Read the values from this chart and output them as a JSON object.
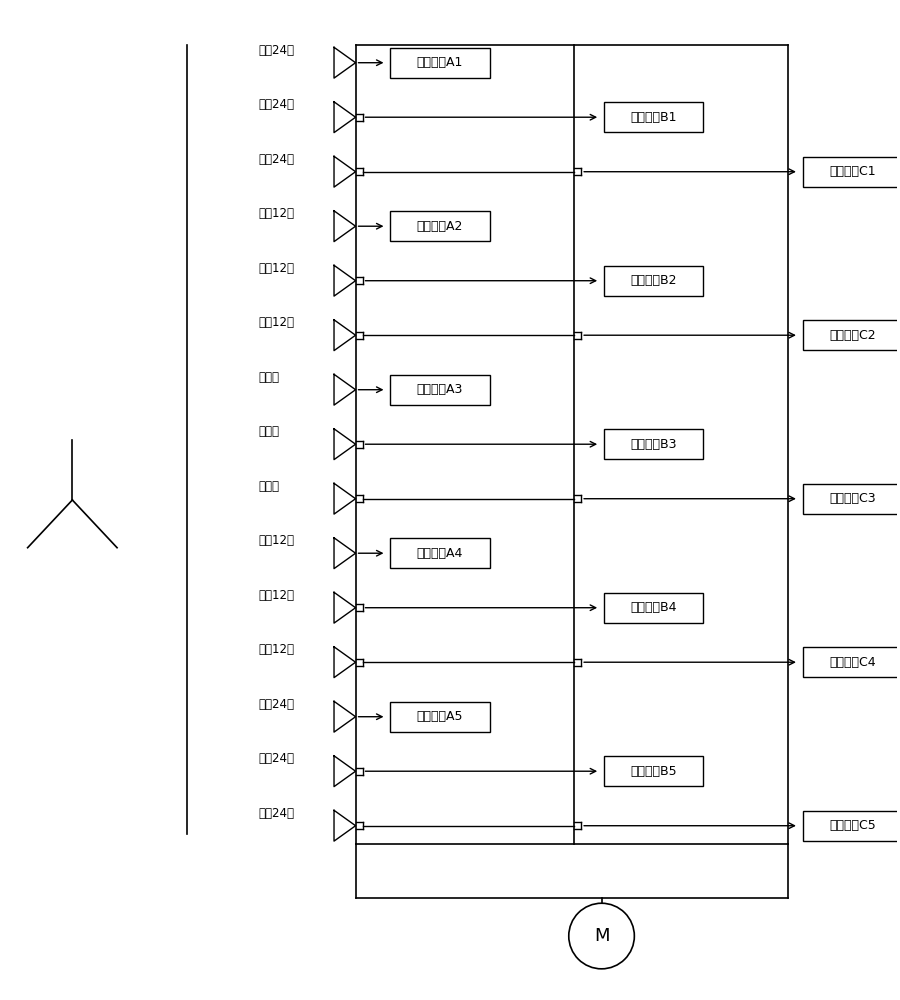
{
  "fig_width": 9.0,
  "fig_height": 10.0,
  "bg_color": "#ffffff",
  "phases": [
    "超前24度",
    "超前24度",
    "超前24度",
    "超前12度",
    "超前12度",
    "超前12度",
    "无相移",
    "无相移",
    "无相移",
    "滞后12度",
    "滞后12度",
    "滞后12度",
    "滞后24度",
    "滞后24度",
    "滞后24度"
  ],
  "units_A": [
    "功率单元A1",
    "功率单元A2",
    "功率单元A3",
    "功率单元A4",
    "功率单元A5"
  ],
  "units_B": [
    "功率单元B1",
    "功率单元B2",
    "功率单元B3",
    "功率单元B4",
    "功率单元B5"
  ],
  "units_C": [
    "功率单元C1",
    "功率单元C2",
    "功率单元C3",
    "功率单元C4",
    "功率单元C5"
  ],
  "motor_label": "M"
}
